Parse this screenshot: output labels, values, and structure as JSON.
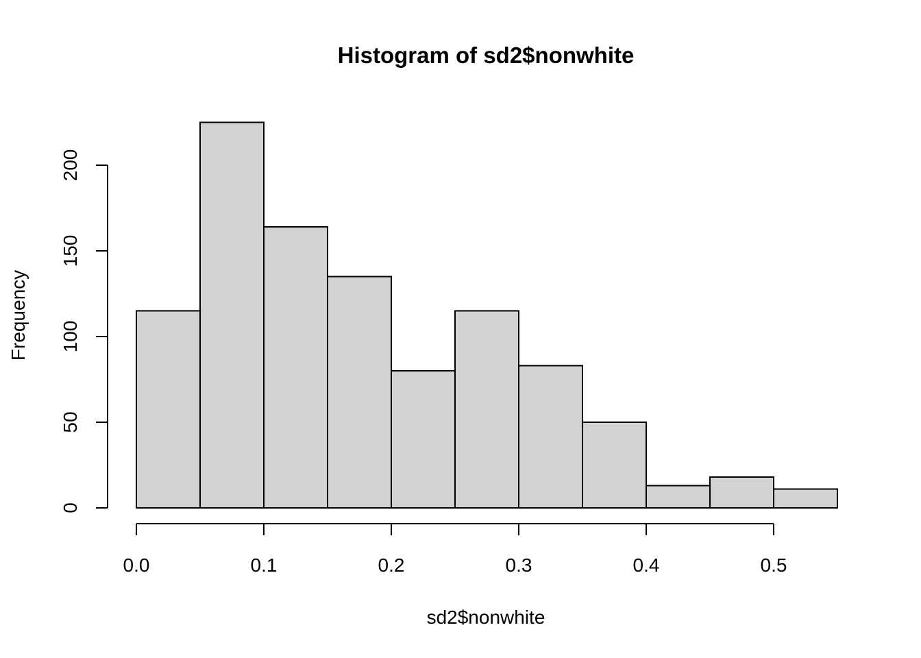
{
  "chart_data": {
    "type": "histogram",
    "title": "Histogram of sd2$nonwhite",
    "xlabel": "sd2$nonwhite",
    "ylabel": "Frequency",
    "bin_edges": [
      0.0,
      0.05,
      0.1,
      0.15,
      0.2,
      0.25,
      0.3,
      0.35,
      0.4,
      0.45,
      0.5,
      0.55
    ],
    "values": [
      115,
      225,
      164,
      135,
      80,
      115,
      83,
      50,
      13,
      18,
      11
    ],
    "xlim": [
      0.0,
      0.55
    ],
    "ylim": [
      0,
      225
    ],
    "x_ticks": [
      0.0,
      0.1,
      0.2,
      0.3,
      0.4,
      0.5
    ],
    "x_tick_labels": [
      "0.0",
      "0.1",
      "0.2",
      "0.3",
      "0.4",
      "0.5"
    ],
    "y_ticks": [
      0,
      50,
      100,
      150,
      200
    ],
    "y_tick_labels": [
      "0",
      "50",
      "100",
      "150",
      "200"
    ],
    "colors": {
      "bar_fill": "#d3d3d3",
      "bar_stroke": "#000000"
    },
    "grid": false,
    "legend": "none"
  }
}
